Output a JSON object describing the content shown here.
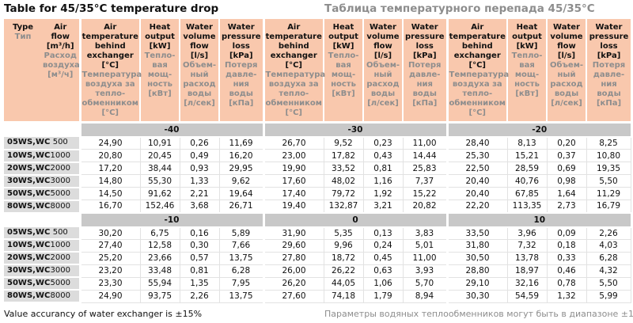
{
  "title": {
    "en": "Table for 45/35°C temperature drop",
    "ru": "Таблица температурного перепада 45/35°C"
  },
  "header": {
    "type": {
      "en": "Type",
      "ru": "Тип"
    },
    "air_flow": {
      "en": "Air\nflow\n[m³/h]",
      "ru": "Расход\nвоздуха\n[м³/ч]"
    },
    "cols": [
      {
        "en": "Air\ntemperature\nbehind\nexchanger\n[°C]",
        "ru": "Температура\nвоздуха за\nтепло-\nобменником\n[°C]"
      },
      {
        "en": "Heat\noutput\n[kW]",
        "ru": "Тепло-\nвая\nмощ-\nность\n[кВт]"
      },
      {
        "en": "Water\nvolume\nflow\n[l/s]",
        "ru": "Объем-\nный\nрасход\nводы\n[л/сек]"
      },
      {
        "en": "Water\npressure\nloss\n[kPa]",
        "ru": "Потеря\nдавле-\nния\nводы\n[кПа]"
      }
    ]
  },
  "blocks": [
    {
      "sections": [
        "-40",
        "-30",
        "-20"
      ],
      "rows": [
        {
          "type": "05WS,WC",
          "air_flow": "500",
          "values": [
            [
              "24,90",
              "10,91",
              "0,26",
              "11,69"
            ],
            [
              "26,70",
              "9,52",
              "0,23",
              "11,00"
            ],
            [
              "28,40",
              "8,13",
              "0,20",
              "8,25"
            ]
          ]
        },
        {
          "type": "10WS,WC",
          "air_flow": "1000",
          "values": [
            [
              "20,80",
              "20,45",
              "0,49",
              "16,20"
            ],
            [
              "23,00",
              "17,82",
              "0,43",
              "14,44"
            ],
            [
              "25,30",
              "15,21",
              "0,37",
              "10,80"
            ]
          ]
        },
        {
          "type": "20WS,WC",
          "air_flow": "2000",
          "values": [
            [
              "17,20",
              "38,44",
              "0,93",
              "29,95"
            ],
            [
              "19,90",
              "33,52",
              "0,81",
              "25,83"
            ],
            [
              "22,50",
              "28,59",
              "0,69",
              "19,35"
            ]
          ]
        },
        {
          "type": "30WS,WC",
          "air_flow": "3000",
          "values": [
            [
              "14,80",
              "55,30",
              "1,33",
              "9,62"
            ],
            [
              "17,60",
              "48,02",
              "1,16",
              "7,37"
            ],
            [
              "20,40",
              "40,76",
              "0,98",
              "5,50"
            ]
          ]
        },
        {
          "type": "50WS,WC",
          "air_flow": "5000",
          "values": [
            [
              "14,50",
              "91,62",
              "2,21",
              "19,64"
            ],
            [
              "17,40",
              "79,72",
              "1,92",
              "15,22"
            ],
            [
              "20,40",
              "67,85",
              "1,64",
              "11,29"
            ]
          ]
        },
        {
          "type": "80WS,WC",
          "air_flow": "8000",
          "values": [
            [
              "16,70",
              "152,46",
              "3,68",
              "26,71"
            ],
            [
              "19,40",
              "132,87",
              "3,21",
              "20,82"
            ],
            [
              "22,20",
              "113,35",
              "2,73",
              "16,79"
            ]
          ]
        }
      ]
    },
    {
      "sections": [
        "-10",
        "0",
        "10"
      ],
      "rows": [
        {
          "type": "05WS,WC",
          "air_flow": "500",
          "values": [
            [
              "30,20",
              "6,75",
              "0,16",
              "5,89"
            ],
            [
              "31,90",
              "5,35",
              "0,13",
              "3,83"
            ],
            [
              "33,50",
              "3,96",
              "0,09",
              "2,26"
            ]
          ]
        },
        {
          "type": "10WS,WC",
          "air_flow": "1000",
          "values": [
            [
              "27,40",
              "12,58",
              "0,30",
              "7,66"
            ],
            [
              "29,60",
              "9,96",
              "0,24",
              "5,01"
            ],
            [
              "31,80",
              "7,32",
              "0,18",
              "4,03"
            ]
          ]
        },
        {
          "type": "20WS,WC",
          "air_flow": "2000",
          "values": [
            [
              "25,20",
              "23,66",
              "0,57",
              "13,75"
            ],
            [
              "27,80",
              "18,72",
              "0,45",
              "11,00"
            ],
            [
              "30,50",
              "13,78",
              "0,33",
              "6,28"
            ]
          ]
        },
        {
          "type": "30WS,WC",
          "air_flow": "3000",
          "values": [
            [
              "23,20",
              "33,48",
              "0,81",
              "6,28"
            ],
            [
              "26,00",
              "26,22",
              "0,63",
              "3,93"
            ],
            [
              "28,80",
              "18,97",
              "0,46",
              "4,32"
            ]
          ]
        },
        {
          "type": "50WS,WC",
          "air_flow": "5000",
          "values": [
            [
              "23,30",
              "55,94",
              "1,35",
              "7,95"
            ],
            [
              "26,20",
              "44,05",
              "1,06",
              "5,70"
            ],
            [
              "29,10",
              "32,16",
              "0,78",
              "5,50"
            ]
          ]
        },
        {
          "type": "80WS,WC",
          "air_flow": "8000",
          "values": [
            [
              "24,90",
              "93,75",
              "2,26",
              "13,75"
            ],
            [
              "27,60",
              "74,18",
              "1,79",
              "8,94"
            ],
            [
              "30,30",
              "54,59",
              "1,32",
              "5,99"
            ]
          ]
        }
      ]
    }
  ],
  "footer": {
    "en": "Value accurancy of water exchanger is ±15%",
    "ru": "Параметры водяных теплообменников могут быть в диапазоне ±15%"
  },
  "colors": {
    "header_bg": "#f9c8ad",
    "band_bg": "#c8c8c8",
    "label_bg": "#dcdcdc",
    "ru_text": "#8d8d8d",
    "grid": "#e2e2e2"
  }
}
